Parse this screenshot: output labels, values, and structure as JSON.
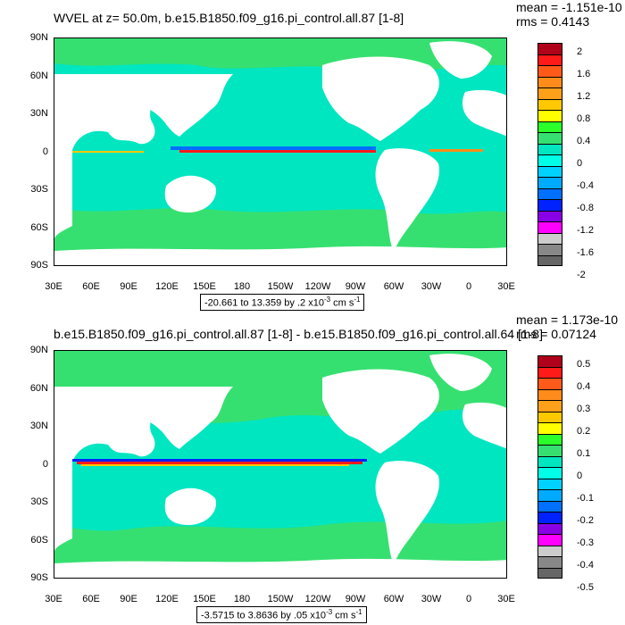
{
  "chart_data": [
    {
      "type": "heatmap",
      "title": "WVEL at z=  50.0m, b.e15.B1850.f09_g16.pi_control.all.87 [1-8]",
      "stat_mean": "mean = -1.151e-10",
      "stat_rms": "rms = 0.4143",
      "range_label": "-20.661 to 13.359 by .2 x10",
      "range_exp": "-3",
      "range_unit": " cm s",
      "range_unit_exp": "-1",
      "y_ticks": [
        "90N",
        "60N",
        "30N",
        "0",
        "30S",
        "60S",
        "90S"
      ],
      "x_ticks": [
        "30E",
        "60E",
        "90E",
        "120E",
        "150E",
        "180",
        "150W",
        "120W",
        "90W",
        "60W",
        "30W",
        "0",
        "30E"
      ],
      "colorbar_labels": [
        "2",
        "1.6",
        "1.2",
        "0.8",
        "0.4",
        "0",
        "-0.4",
        "-0.8",
        "-1.2",
        "-1.6",
        "-2"
      ],
      "colors": [
        "#b0001a",
        "#ff1a1a",
        "#ff5a1a",
        "#ff8c1a",
        "#ffa01a",
        "#ffc800",
        "#ffff00",
        "#2aff2a",
        "#36e070",
        "#00e6c0",
        "#00ffe6",
        "#00d2ff",
        "#00aaff",
        "#0070ff",
        "#0022ff",
        "#8a00e6",
        "#ff00ff",
        "#cccccc",
        "#888888",
        "#666666"
      ]
    },
    {
      "type": "heatmap",
      "title": "b.e15.B1850.f09_g16.pi_control.all.87 [1-8] - b.e15.B1850.f09_g16.pi_control.all.64 [1-8]",
      "stat_mean": "mean = 1.173e-10",
      "stat_rms": "rms = 0.07124",
      "range_label": "-3.5715 to 3.8636 by .05 x10",
      "range_exp": "-3",
      "range_unit": " cm s",
      "range_unit_exp": "-1",
      "y_ticks": [
        "90N",
        "60N",
        "30N",
        "0",
        "30S",
        "60S",
        "90S"
      ],
      "x_ticks": [
        "30E",
        "60E",
        "90E",
        "120E",
        "150E",
        "180",
        "150W",
        "120W",
        "90W",
        "60W",
        "30W",
        "0",
        "30E"
      ],
      "colorbar_labels": [
        "0.5",
        "0.4",
        "0.3",
        "0.2",
        "0.1",
        "0",
        "-0.1",
        "-0.2",
        "-0.3",
        "-0.4",
        "-0.5"
      ],
      "colors": [
        "#b0001a",
        "#ff1a1a",
        "#ff5a1a",
        "#ff8c1a",
        "#ffa01a",
        "#ffc800",
        "#ffff00",
        "#2aff2a",
        "#36e070",
        "#00e6c0",
        "#00ffe6",
        "#00d2ff",
        "#00aaff",
        "#0070ff",
        "#0022ff",
        "#8a00e6",
        "#ff00ff",
        "#cccccc",
        "#888888",
        "#666666"
      ]
    }
  ]
}
